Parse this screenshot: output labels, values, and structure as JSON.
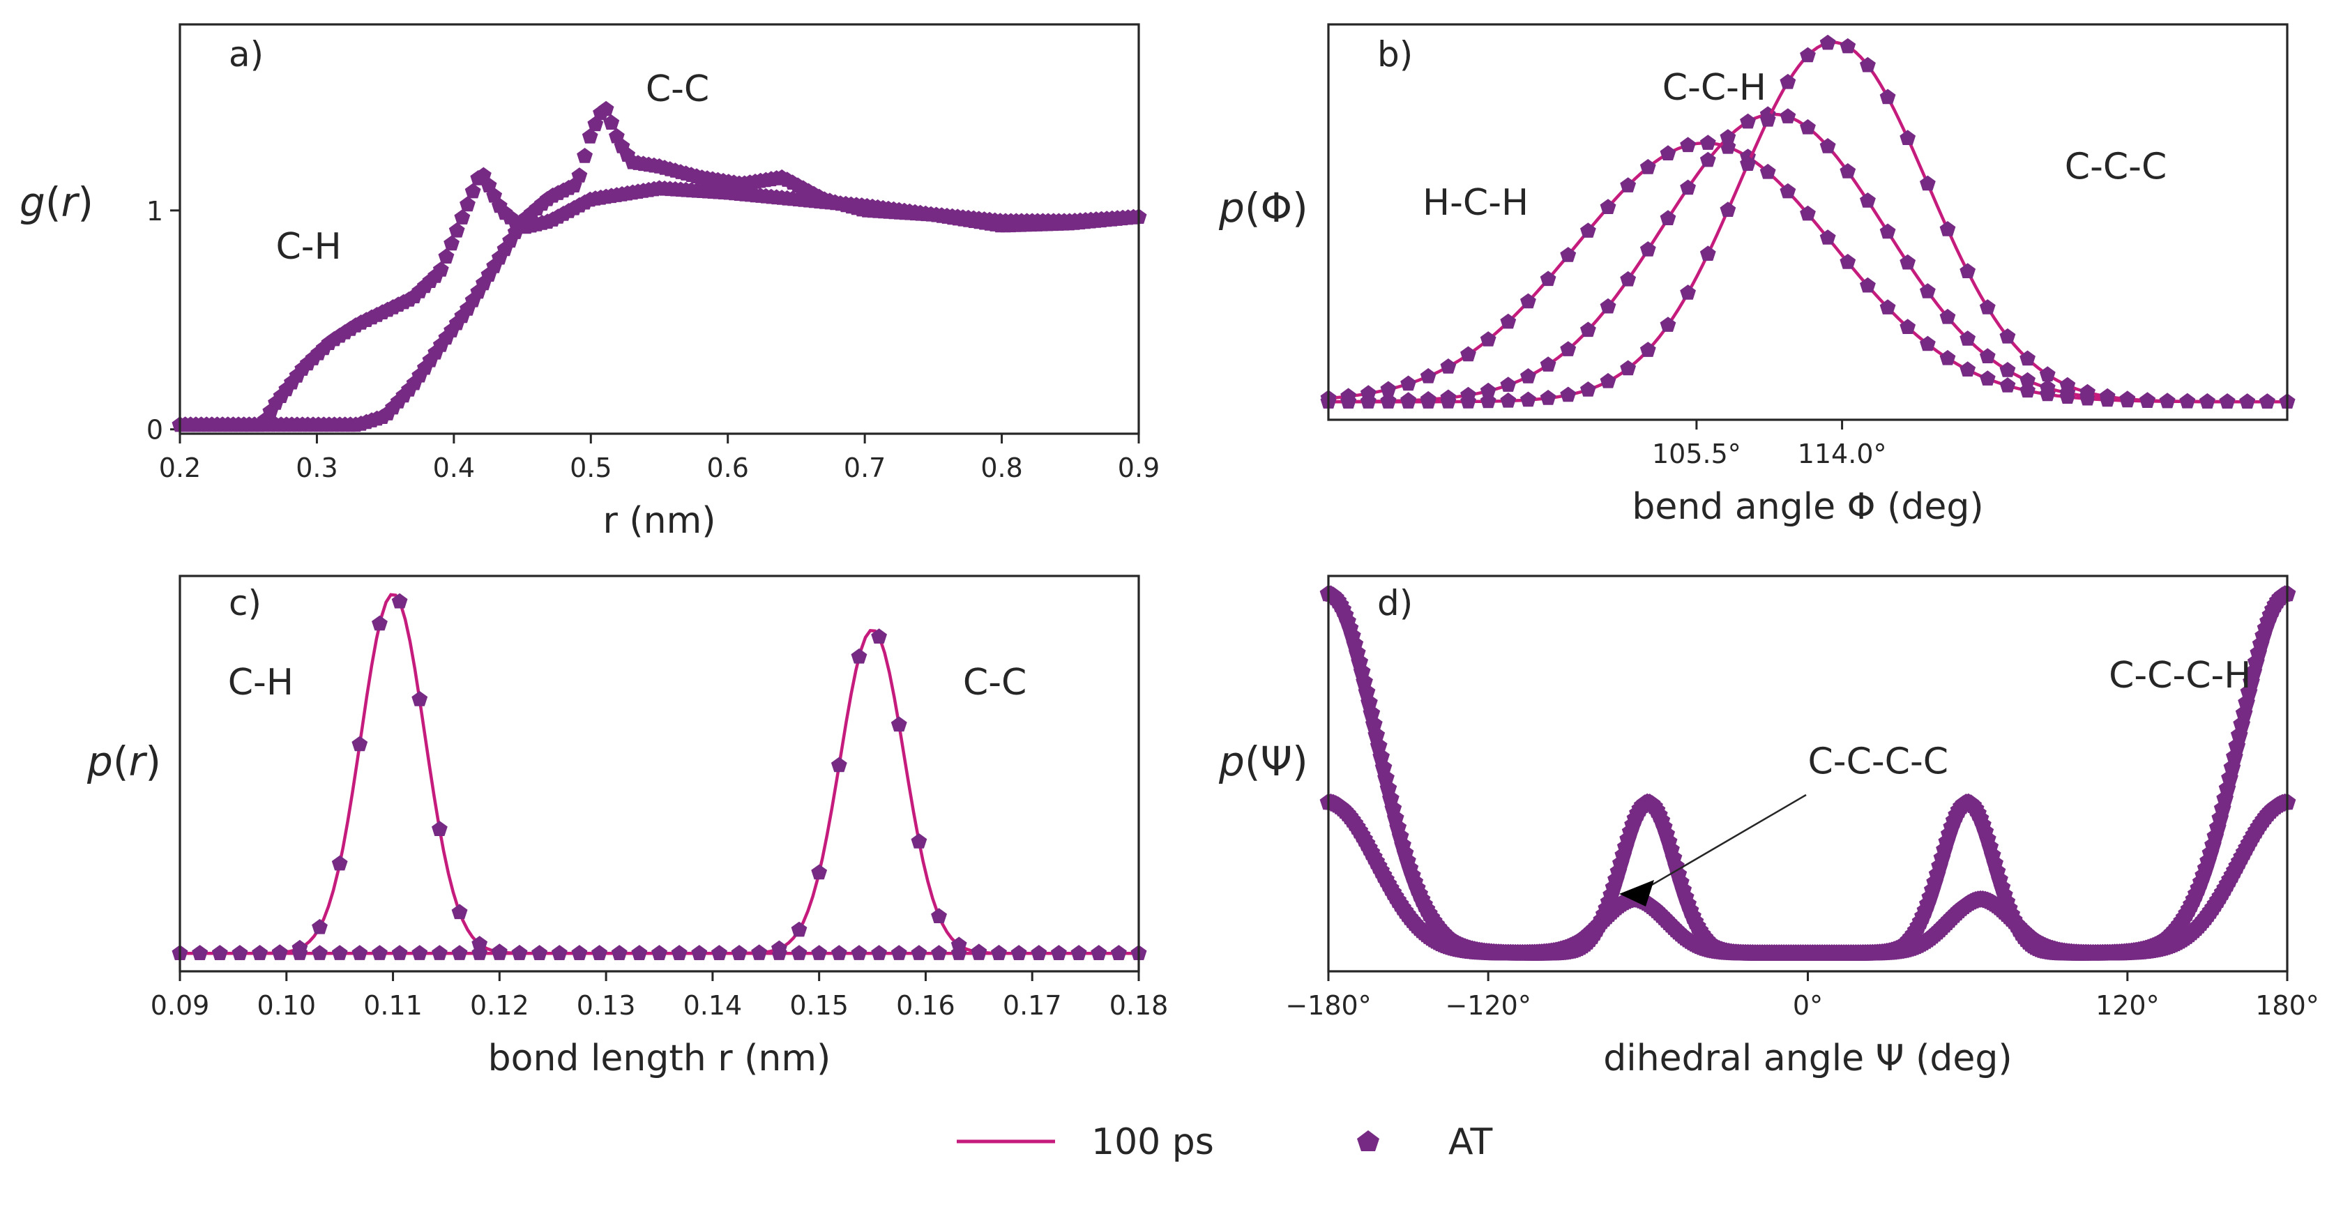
{
  "legend": {
    "line_label": "100 ps",
    "marker_label": "AT",
    "line_color": "#c51b7d",
    "marker_color": "#762a83"
  },
  "chart_data": [
    {
      "id": "a",
      "type": "line",
      "panel_label": "a)",
      "xlabel": "r (nm)",
      "ylabel_symbol": "g",
      "ylabel_arg": "r",
      "xlim": [
        0.2,
        0.9
      ],
      "ylim": [
        -0.02,
        1.85
      ],
      "xticks": [
        0.2,
        0.3,
        0.4,
        0.5,
        0.6,
        0.7,
        0.8,
        0.9
      ],
      "xtick_labels": [
        "0.2",
        "0.3",
        "0.4",
        "0.5",
        "0.6",
        "0.7",
        "0.8",
        "0.9"
      ],
      "yticks": [
        0,
        1
      ],
      "ytick_labels": [
        "0",
        "1"
      ],
      "series": [
        {
          "name": "C-H",
          "x": [
            0.2,
            0.26,
            0.27,
            0.29,
            0.31,
            0.33,
            0.35,
            0.37,
            0.39,
            0.405,
            0.42,
            0.435,
            0.45,
            0.47,
            0.5,
            0.55,
            0.6,
            0.65,
            0.7,
            0.75,
            0.8,
            0.85,
            0.9
          ],
          "y": [
            0.02,
            0.02,
            0.12,
            0.28,
            0.4,
            0.48,
            0.54,
            0.6,
            0.72,
            0.95,
            1.18,
            1.0,
            0.92,
            0.95,
            1.05,
            1.1,
            1.08,
            1.05,
            1.02,
            0.98,
            0.95,
            0.95,
            0.97
          ]
        },
        {
          "name": "C-C",
          "x": [
            0.2,
            0.33,
            0.35,
            0.37,
            0.39,
            0.41,
            0.43,
            0.45,
            0.47,
            0.49,
            0.5,
            0.51,
            0.52,
            0.53,
            0.55,
            0.58,
            0.61,
            0.64,
            0.67,
            0.7,
            0.75,
            0.8,
            0.85,
            0.9
          ],
          "y": [
            0.02,
            0.02,
            0.06,
            0.2,
            0.38,
            0.55,
            0.75,
            0.95,
            1.06,
            1.12,
            1.35,
            1.48,
            1.32,
            1.22,
            1.2,
            1.15,
            1.12,
            1.15,
            1.05,
            1.0,
            0.98,
            0.93,
            0.94,
            0.97
          ]
        }
      ],
      "annotations": [
        {
          "text": "C-H",
          "x": 0.27,
          "y": 0.78
        },
        {
          "text": "C-C",
          "x": 0.54,
          "y": 1.5
        }
      ]
    },
    {
      "id": "b",
      "type": "line",
      "panel_label": "b)",
      "xlabel": "bend angle Φ (deg)",
      "ylabel_symbol": "p",
      "ylabel_arg": "Φ",
      "xlim": [
        84,
        140
      ],
      "ylim": [
        -0.05,
        1.05
      ],
      "xticks": [
        105.5,
        114.0
      ],
      "xtick_labels": [
        "105.5°",
        "114.0°"
      ],
      "yticks": [],
      "series": [
        {
          "name": "H-C-H",
          "mu": 106.0,
          "sigma": 7.5,
          "amp": 0.72
        },
        {
          "name": "C-C-H",
          "mu": 110.0,
          "sigma": 6.5,
          "amp": 0.8
        },
        {
          "name": "C-C-C",
          "mu": 113.5,
          "sigma": 5.5,
          "amp": 1.0
        }
      ],
      "annotations": [
        {
          "text": "H-C-H",
          "x": 89.5,
          "y": 0.52
        },
        {
          "text": "C-C-H",
          "x": 103.5,
          "y": 0.84
        },
        {
          "text": "C-C-C",
          "x": 127.0,
          "y": 0.62
        }
      ]
    },
    {
      "id": "c",
      "type": "line",
      "panel_label": "c)",
      "xlabel": "bond length r (nm)",
      "ylabel_symbol": "p",
      "ylabel_arg": "r",
      "xlim": [
        0.09,
        0.18
      ],
      "ylim": [
        -0.05,
        1.05
      ],
      "xticks": [
        0.09,
        0.1,
        0.11,
        0.12,
        0.13,
        0.14,
        0.15,
        0.16,
        0.17,
        0.18
      ],
      "xtick_labels": [
        "0.09",
        "0.10",
        "0.11",
        "0.12",
        "0.13",
        "0.14",
        "0.15",
        "0.16",
        "0.17",
        "0.18"
      ],
      "yticks": [],
      "series": [
        {
          "name": "C-H",
          "mu": 0.11,
          "sigma": 0.003,
          "amp": 1.0
        },
        {
          "name": "C-C",
          "mu": 0.155,
          "sigma": 0.003,
          "amp": 0.9
        }
      ],
      "annotations": [
        {
          "text": "C-H",
          "x": 0.0945,
          "y": 0.72
        },
        {
          "text": "C-C",
          "x": 0.1635,
          "y": 0.72
        }
      ]
    },
    {
      "id": "d",
      "type": "scatter",
      "panel_label": "d)",
      "xlabel": "dihedral angle Ψ (deg)",
      "ylabel_symbol": "p",
      "ylabel_arg": "Ψ",
      "xlim": [
        -180,
        180
      ],
      "ylim": [
        -0.05,
        1.05
      ],
      "xticks": [
        -180,
        -120,
        0,
        120,
        180
      ],
      "xtick_labels": [
        "−180°",
        "−120°",
        "0°",
        "120°",
        "180°"
      ],
      "yticks": [],
      "series": [
        {
          "name": "C-C-C-C",
          "base": 0.0,
          "trans_amp": 0.42,
          "gauche_amp": 0.15,
          "gauche_center": 65,
          "gauche_sigma": 12
        },
        {
          "name": "C-C-C-H",
          "base": 0.0,
          "trans_amp": 1.0,
          "gauche_amp": 0.42,
          "gauche_center": 60,
          "gauche_sigma": 10
        }
      ],
      "annotations": [
        {
          "text": "C-C-C-H",
          "x": 113,
          "y": 0.74
        },
        {
          "text": "C-C-C-C",
          "x": 0,
          "y": 0.5
        }
      ]
    }
  ]
}
